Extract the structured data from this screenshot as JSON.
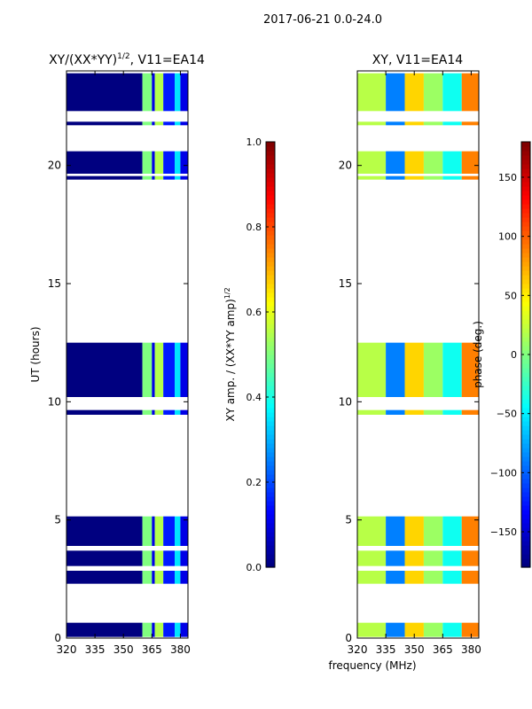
{
  "suptitle": "2017-06-21 0.0-24.0",
  "shared_xlabel": "frequency (MHz)",
  "colors": {
    "no_data": "#ffffff",
    "low_value": "#00008f"
  },
  "chart_data": [
    {
      "type": "heatmap",
      "title_main": "XY/(XX*YY)",
      "title_sup": "1/2",
      "title_tail": ", V11=EA14",
      "xlabel": "",
      "ylabel": "UT (hours)",
      "xlim": [
        320,
        384
      ],
      "ylim": [
        0,
        24
      ],
      "xticks": [
        320,
        335,
        350,
        365,
        380
      ],
      "yticks": [
        0,
        5,
        10,
        15,
        20
      ],
      "colorscale": "jet",
      "colorbar": {
        "label_main": "XY amp. / (XX*YY amp)",
        "label_sup": "1/2",
        "range": [
          0.0,
          1.0
        ],
        "ticks": [
          "0.0",
          "0.2",
          "0.4",
          "0.6",
          "0.8",
          "1.0"
        ],
        "tick_values": [
          0.0,
          0.2,
          0.4,
          0.6,
          0.8,
          1.0
        ]
      },
      "hour_bands": [
        [
          0.05,
          0.65
        ],
        [
          2.3,
          2.85
        ],
        [
          3.05,
          3.7
        ],
        [
          3.9,
          5.15
        ],
        [
          9.45,
          9.65
        ],
        [
          10.2,
          12.5
        ],
        [
          19.4,
          19.55
        ],
        [
          19.65,
          20.6
        ],
        [
          21.7,
          21.85
        ],
        [
          22.3,
          23.9
        ]
      ],
      "frequency_bands": [
        {
          "from": 320,
          "to": 360,
          "value": 0.0
        },
        {
          "from": 360,
          "to": 365,
          "value": 0.5
        },
        {
          "from": 365,
          "to": 366.5,
          "value": 0.1
        },
        {
          "from": 366.5,
          "to": 371,
          "value": 0.55
        },
        {
          "from": 371,
          "to": 377,
          "value": 0.15
        },
        {
          "from": 377,
          "to": 380,
          "value": 0.35
        },
        {
          "from": 380,
          "to": 384,
          "value": 0.1
        }
      ]
    },
    {
      "type": "heatmap",
      "title_main": "XY, V11=EA14",
      "title_sup": "",
      "title_tail": "",
      "xlabel": "",
      "ylabel": "",
      "xlim": [
        320,
        384
      ],
      "ylim": [
        0,
        24
      ],
      "xticks": [
        320,
        335,
        350,
        365,
        380
      ],
      "yticks": [
        0,
        5,
        10,
        15,
        20
      ],
      "colorscale": "jet",
      "colorbar": {
        "label_main": "phase (deg.)",
        "label_sup": "",
        "range": [
          -180,
          180
        ],
        "ticks": [
          "−150",
          "−100",
          "−50",
          "0",
          "50",
          "100",
          "150"
        ],
        "tick_values": [
          -150,
          -100,
          -50,
          0,
          50,
          100,
          150
        ]
      },
      "hour_bands": [
        [
          0.05,
          0.65
        ],
        [
          2.3,
          2.85
        ],
        [
          3.05,
          3.7
        ],
        [
          3.9,
          5.15
        ],
        [
          9.45,
          9.65
        ],
        [
          10.2,
          12.5
        ],
        [
          19.4,
          19.55
        ],
        [
          19.65,
          20.6
        ],
        [
          21.7,
          21.85
        ],
        [
          22.3,
          23.9
        ]
      ],
      "frequency_bands": [
        {
          "from": 320,
          "to": 335,
          "value": 20
        },
        {
          "from": 335,
          "to": 345,
          "value": -90
        },
        {
          "from": 345,
          "to": 355,
          "value": 60
        },
        {
          "from": 355,
          "to": 365,
          "value": 10
        },
        {
          "from": 365,
          "to": 375,
          "value": -40
        },
        {
          "from": 375,
          "to": 384,
          "value": 90
        }
      ]
    }
  ]
}
